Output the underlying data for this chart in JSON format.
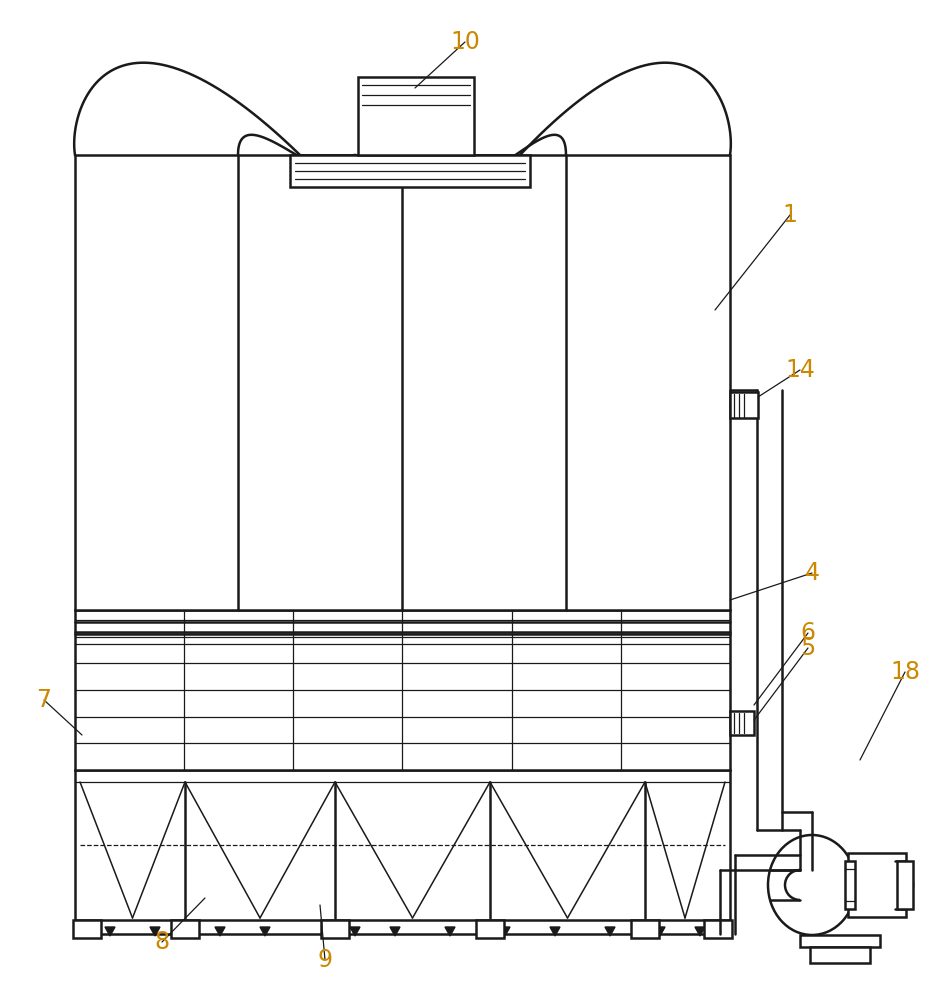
{
  "line_color": "#1a1a1a",
  "lw_main": 1.8,
  "lw_thin": 0.9,
  "bg_color": "#ffffff",
  "label_color": "#cc8800",
  "label_fontsize": 17
}
